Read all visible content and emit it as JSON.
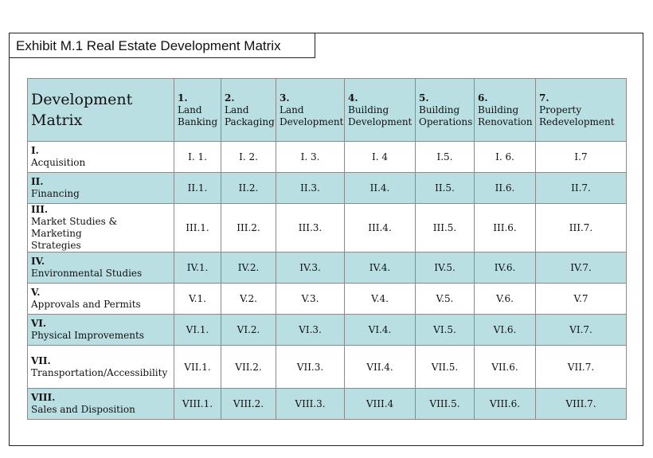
{
  "exhibit": {
    "title": "Exhibit M.1 Real Estate Development Matrix"
  },
  "matrix": {
    "corner_label": [
      "Development",
      "Matrix"
    ],
    "columns": [
      {
        "num": "1.",
        "label": [
          "Land",
          "Banking"
        ]
      },
      {
        "num": "2.",
        "label": [
          "Land",
          "Packaging"
        ]
      },
      {
        "num": "3.",
        "label": [
          "Land",
          "Development"
        ]
      },
      {
        "num": "4.",
        "label": [
          "Building",
          "Development"
        ]
      },
      {
        "num": "5.",
        "label": [
          "Building",
          "Operations"
        ]
      },
      {
        "num": "6.",
        "label": [
          "Building",
          "Renovation"
        ]
      },
      {
        "num": "7.",
        "label": [
          "Property",
          "Redevelopment"
        ]
      }
    ],
    "rows": [
      {
        "num": "I.",
        "label": [
          "Acquisition"
        ],
        "cells": [
          "I. 1.",
          "I. 2.",
          "I. 3.",
          "I. 4",
          "I.5.",
          "I. 6.",
          "I.7"
        ]
      },
      {
        "num": "II.",
        "label": [
          "Financing"
        ],
        "cells": [
          "II.1.",
          "II.2.",
          "II.3.",
          "II.4.",
          "II.5.",
          "II.6.",
          "II.7."
        ]
      },
      {
        "num": "III.",
        "label": [
          "Market Studies & Marketing",
          "Strategies"
        ],
        "cells": [
          "III.1.",
          "III.2.",
          "III.3.",
          "III.4.",
          "III.5.",
          "III.6.",
          "III.7."
        ]
      },
      {
        "num": "IV.",
        "label": [
          "Environmental Studies"
        ],
        "cells": [
          "IV.1.",
          "IV.2.",
          "IV.3.",
          "IV.4.",
          "IV.5.",
          "IV.6.",
          "IV.7."
        ]
      },
      {
        "num": "V.",
        "label": [
          "Approvals and Permits"
        ],
        "cells": [
          "V.1.",
          "V.2.",
          "V.3.",
          "V.4.",
          "V.5.",
          "V.6.",
          "V.7"
        ]
      },
      {
        "num": "VI.",
        "label": [
          "Physical Improvements"
        ],
        "cells": [
          "VI.1.",
          "VI.2.",
          "VI.3.",
          "VI.4.",
          "VI.5.",
          "VI.6.",
          "VI.7."
        ]
      },
      {
        "num": "VII.",
        "label": [
          "Transportation/Accessibility"
        ],
        "cells": [
          "VII.1.",
          "VII.2.",
          "VII.3.",
          "VII.4.",
          "VII.5.",
          "VII.6.",
          "VII.7."
        ]
      },
      {
        "num": "VIII.",
        "label": [
          "Sales and Disposition"
        ],
        "cells": [
          "VIII.1.",
          "VIII.2.",
          "VIII.3.",
          "VIII.4",
          "VIII.5.",
          "VIII.6.",
          "VIII.7."
        ]
      }
    ],
    "colors": {
      "shade": "#b9dfe3",
      "plain": "#ffffff",
      "border": "#8a8a8a"
    }
  }
}
